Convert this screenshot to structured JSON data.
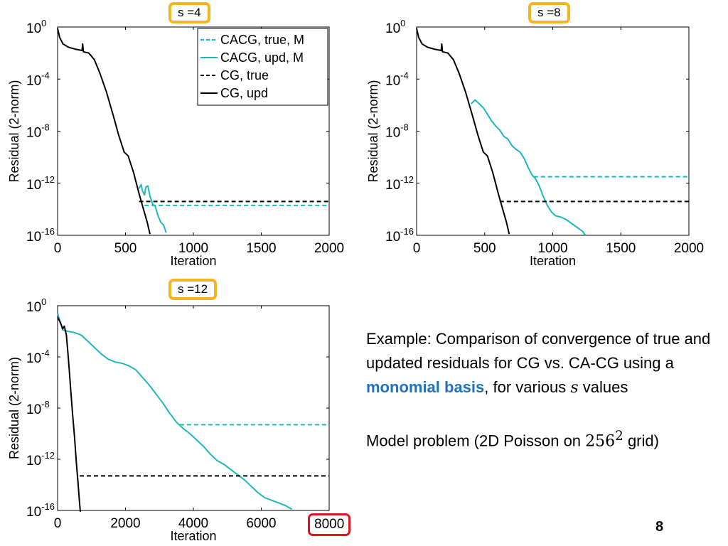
{
  "chart_data": [
    {
      "type": "line",
      "badge": "s =4",
      "xlabel": "Iteration",
      "ylabel": "Residual (2-norm)",
      "xlim": [
        0,
        2000
      ],
      "xticks": [
        "0",
        "500",
        "1000",
        "1500",
        "2000"
      ],
      "ylim_exp": [
        -16,
        0
      ],
      "yticks": [
        {
          "base": "10",
          "exp": "0"
        },
        {
          "base": "10",
          "exp": "-4"
        },
        {
          "base": "10",
          "exp": "-8"
        },
        {
          "base": "10",
          "exp": "-12"
        },
        {
          "base": "10",
          "exp": "-16"
        }
      ],
      "yscale": "log",
      "legend": "top-right",
      "series": [
        {
          "name": "CACG, true, M",
          "color": "#1fb7b7",
          "dash": true,
          "legend": true,
          "points": [
            [
              640,
              -13.7
            ],
            [
              2000,
              -13.7
            ]
          ]
        },
        {
          "name": "CACG, upd, M",
          "color": "#1fb7b7",
          "dash": false,
          "legend": true,
          "points": [
            [
              600,
              -12.4
            ],
            [
              615,
              -12.1
            ],
            [
              625,
              -12.6
            ],
            [
              640,
              -12.9
            ],
            [
              650,
              -12.3
            ],
            [
              665,
              -12.2
            ],
            [
              680,
              -13.0
            ],
            [
              700,
              -13.6
            ],
            [
              720,
              -13.8
            ],
            [
              740,
              -14.5
            ],
            [
              760,
              -15.0
            ],
            [
              780,
              -15.2
            ],
            [
              800,
              -15.8
            ]
          ]
        },
        {
          "name": "CG, true",
          "color": "#000000",
          "dash": true,
          "legend": true,
          "points": [
            [
              600,
              -13.4
            ],
            [
              2000,
              -13.4
            ]
          ]
        },
        {
          "name": "CG, upd",
          "color": "#000000",
          "dash": false,
          "legend": true,
          "points": [
            [
              0,
              -0.1
            ],
            [
              15,
              -0.8
            ],
            [
              40,
              -1.3
            ],
            [
              80,
              -1.55
            ],
            [
              130,
              -1.7
            ],
            [
              180,
              -1.8
            ],
            [
              185,
              -1.3
            ],
            [
              190,
              -1.9
            ],
            [
              230,
              -2.0
            ],
            [
              270,
              -2.5
            ],
            [
              310,
              -3.5
            ],
            [
              360,
              -5.0
            ],
            [
              410,
              -6.8
            ],
            [
              450,
              -8.3
            ],
            [
              490,
              -9.6
            ],
            [
              520,
              -9.9
            ],
            [
              560,
              -11.2
            ],
            [
              600,
              -12.8
            ],
            [
              630,
              -13.9
            ],
            [
              660,
              -15.0
            ],
            [
              680,
              -15.9
            ]
          ]
        }
      ]
    },
    {
      "type": "line",
      "badge": "s =8",
      "xlabel": "Iteration",
      "ylabel": "Residual (2-norm)",
      "xlim": [
        0,
        2000
      ],
      "xticks": [
        "0",
        "500",
        "1000",
        "1500",
        "2000"
      ],
      "ylim_exp": [
        -16,
        0
      ],
      "yticks": [
        {
          "base": "10",
          "exp": "0"
        },
        {
          "base": "10",
          "exp": "-4"
        },
        {
          "base": "10",
          "exp": "-8"
        },
        {
          "base": "10",
          "exp": "-12"
        },
        {
          "base": "10",
          "exp": "-16"
        }
      ],
      "yscale": "log",
      "legend": "none",
      "series": [
        {
          "name": "",
          "color": "#1fb7b7",
          "dash": true,
          "points": [
            [
              860,
              -11.5
            ],
            [
              2000,
              -11.5
            ]
          ]
        },
        {
          "name": "",
          "color": "#1fb7b7",
          "dash": false,
          "points": [
            [
              400,
              -5.9
            ],
            [
              430,
              -5.6
            ],
            [
              460,
              -5.9
            ],
            [
              490,
              -6.2
            ],
            [
              520,
              -6.7
            ],
            [
              550,
              -7.2
            ],
            [
              580,
              -7.6
            ],
            [
              610,
              -7.9
            ],
            [
              640,
              -8.4
            ],
            [
              670,
              -8.6
            ],
            [
              700,
              -9.1
            ],
            [
              730,
              -9.4
            ],
            [
              760,
              -9.6
            ],
            [
              790,
              -10.1
            ],
            [
              820,
              -10.8
            ],
            [
              850,
              -11.4
            ],
            [
              870,
              -11.6
            ],
            [
              900,
              -12.2
            ],
            [
              930,
              -13.0
            ],
            [
              960,
              -13.7
            ],
            [
              990,
              -14.2
            ],
            [
              1020,
              -14.5
            ],
            [
              1060,
              -14.6
            ],
            [
              1100,
              -14.8
            ],
            [
              1140,
              -15.1
            ],
            [
              1180,
              -15.4
            ],
            [
              1220,
              -15.7
            ],
            [
              1240,
              -16.0
            ]
          ]
        },
        {
          "name": "",
          "color": "#000000",
          "dash": true,
          "points": [
            [
              610,
              -13.4
            ],
            [
              2000,
              -13.4
            ]
          ]
        },
        {
          "name": "",
          "color": "#000000",
          "dash": false,
          "points": [
            [
              0,
              -0.1
            ],
            [
              15,
              -0.8
            ],
            [
              40,
              -1.3
            ],
            [
              80,
              -1.55
            ],
            [
              130,
              -1.7
            ],
            [
              180,
              -1.8
            ],
            [
              185,
              -1.3
            ],
            [
              190,
              -1.9
            ],
            [
              230,
              -2.0
            ],
            [
              270,
              -2.5
            ],
            [
              310,
              -3.5
            ],
            [
              360,
              -5.0
            ],
            [
              410,
              -6.8
            ],
            [
              450,
              -8.3
            ],
            [
              490,
              -9.6
            ],
            [
              520,
              -9.9
            ],
            [
              560,
              -11.2
            ],
            [
              600,
              -12.8
            ],
            [
              630,
              -13.9
            ],
            [
              660,
              -15.0
            ],
            [
              680,
              -15.9
            ]
          ]
        }
      ]
    },
    {
      "type": "line",
      "badge": "s =12",
      "xlabel": "Iteration",
      "ylabel": "Residual (2-norm)",
      "xlim": [
        0,
        8000
      ],
      "xticks": [
        "0",
        "2000",
        "4000",
        "6000",
        "8000"
      ],
      "xtick_highlight": 4,
      "ylim_exp": [
        -16,
        0
      ],
      "yticks": [
        {
          "base": "10",
          "exp": "0"
        },
        {
          "base": "10",
          "exp": "-4"
        },
        {
          "base": "10",
          "exp": "-8"
        },
        {
          "base": "10",
          "exp": "-12"
        },
        {
          "base": "10",
          "exp": "-16"
        }
      ],
      "yscale": "log",
      "legend": "none",
      "series": [
        {
          "name": "",
          "color": "#1fb7b7",
          "dash": true,
          "points": [
            [
              3600,
              -9.3
            ],
            [
              8000,
              -9.3
            ]
          ]
        },
        {
          "name": "",
          "color": "#1fb7b7",
          "dash": false,
          "points": [
            [
              0,
              -0.6
            ],
            [
              150,
              -1.9
            ],
            [
              300,
              -2.0
            ],
            [
              500,
              -2.1
            ],
            [
              700,
              -2.3
            ],
            [
              900,
              -2.8
            ],
            [
              1100,
              -3.3
            ],
            [
              1300,
              -3.8
            ],
            [
              1500,
              -4.2
            ],
            [
              1700,
              -4.4
            ],
            [
              1900,
              -4.5
            ],
            [
              2100,
              -4.7
            ],
            [
              2300,
              -5.0
            ],
            [
              2500,
              -5.6
            ],
            [
              2700,
              -6.2
            ],
            [
              2900,
              -6.9
            ],
            [
              3100,
              -7.6
            ],
            [
              3300,
              -8.4
            ],
            [
              3500,
              -9.1
            ],
            [
              3700,
              -9.6
            ],
            [
              3900,
              -10.0
            ],
            [
              4100,
              -10.5
            ],
            [
              4300,
              -11.0
            ],
            [
              4500,
              -11.6
            ],
            [
              4700,
              -12.1
            ],
            [
              4900,
              -12.4
            ],
            [
              5100,
              -12.8
            ],
            [
              5300,
              -13.2
            ],
            [
              5500,
              -13.6
            ],
            [
              5700,
              -14.1
            ],
            [
              5900,
              -14.6
            ],
            [
              6100,
              -15.0
            ],
            [
              6300,
              -15.2
            ],
            [
              6500,
              -15.4
            ],
            [
              6700,
              -15.6
            ],
            [
              6900,
              -15.9
            ]
          ]
        },
        {
          "name": "",
          "color": "#000000",
          "dash": true,
          "points": [
            [
              650,
              -13.3
            ],
            [
              8000,
              -13.3
            ]
          ]
        },
        {
          "name": "",
          "color": "#000000",
          "dash": false,
          "points": [
            [
              0,
              -0.9
            ],
            [
              80,
              -1.3
            ],
            [
              150,
              -1.8
            ],
            [
              200,
              -1.6
            ],
            [
              260,
              -2.3
            ],
            [
              320,
              -4.2
            ],
            [
              380,
              -6.3
            ],
            [
              440,
              -8.4
            ],
            [
              500,
              -10.3
            ],
            [
              550,
              -12.2
            ],
            [
              600,
              -13.8
            ],
            [
              640,
              -15.2
            ],
            [
              670,
              -16.1
            ]
          ]
        }
      ]
    }
  ],
  "description": {
    "line1_prefix": "Example: Comparison of convergence of true and updated residuals for CG vs. CA-CG using a ",
    "highlight": "monomial basis",
    "line1_suffix": ", for various ",
    "var_s": "s",
    "line1_end": " values",
    "line2_prefix": "Model problem (2D Poisson on ",
    "grid_base": "256",
    "grid_exp": "2",
    "line2_suffix": " grid)"
  },
  "page_number": "8",
  "colors": {
    "cacg": "#1fb7b7",
    "cg": "#000000",
    "badge_border": "#f3b61f",
    "highlight_border": "#e2131b",
    "accent_text": "#1f72c0"
  }
}
